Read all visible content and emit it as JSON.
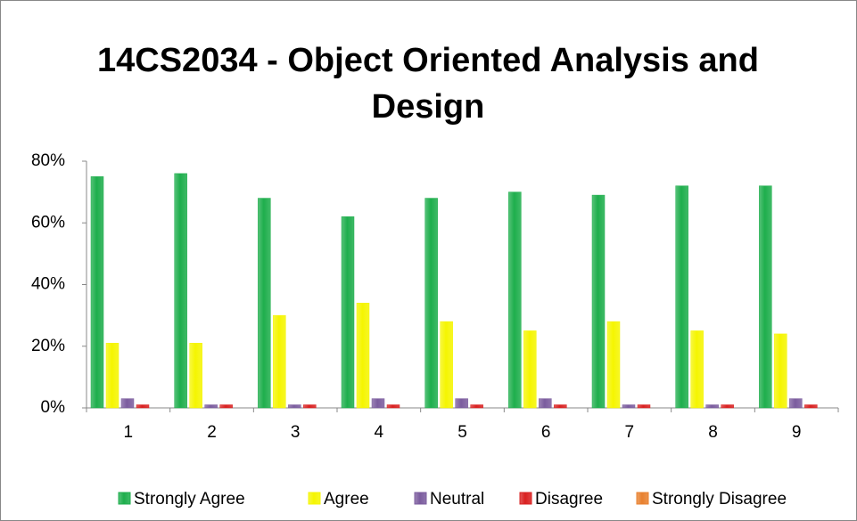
{
  "chart_data": {
    "type": "bar",
    "title": "14CS2034 - Object Oriented Analysis and Design",
    "categories": [
      "1",
      "2",
      "3",
      "4",
      "5",
      "6",
      "7",
      "8",
      "9"
    ],
    "series": [
      {
        "name": "Strongly Agree",
        "color": "#1eae4c",
        "values": [
          75,
          76,
          68,
          62,
          68,
          70,
          69,
          72,
          72
        ]
      },
      {
        "name": "Agree",
        "color": "#f5f500",
        "values": [
          21,
          21,
          30,
          34,
          28,
          25,
          28,
          25,
          24
        ]
      },
      {
        "name": "Neutral",
        "color": "#7b5c9e",
        "values": [
          3,
          1,
          1,
          3,
          3,
          3,
          1,
          1,
          3
        ]
      },
      {
        "name": "Disagree",
        "color": "#d92020",
        "values": [
          1,
          1,
          1,
          1,
          1,
          1,
          1,
          1,
          1
        ]
      },
      {
        "name": "Strongly Disagree",
        "color": "#e8802e",
        "values": [
          0,
          0,
          0,
          0,
          0,
          0,
          0,
          0,
          0
        ]
      }
    ],
    "ylim": [
      0,
      80
    ],
    "yticks": [
      {
        "value": 0,
        "label": "0%"
      },
      {
        "value": 20,
        "label": "20%"
      },
      {
        "value": 40,
        "label": "40%"
      },
      {
        "value": 60,
        "label": "60%"
      },
      {
        "value": 80,
        "label": "80%"
      }
    ],
    "grid": false,
    "legend": "bottom"
  }
}
